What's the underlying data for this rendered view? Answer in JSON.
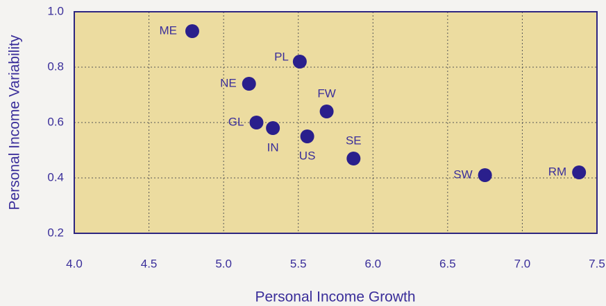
{
  "chart_data": {
    "type": "scatter",
    "x_label": "Personal Income Growth",
    "y_label": "Personal Income Variability",
    "labels": [
      "ME",
      "PL",
      "NE",
      "FW",
      "GL",
      "IN",
      "US",
      "SE",
      "SW",
      "RM"
    ],
    "x": [
      4.79,
      5.51,
      5.17,
      5.69,
      5.22,
      5.33,
      5.56,
      5.87,
      6.75,
      7.38
    ],
    "y": [
      0.93,
      0.82,
      0.74,
      0.64,
      0.6,
      0.58,
      0.55,
      0.47,
      0.41,
      0.42
    ],
    "color": "#2a1f8c",
    "xlim": [
      4.0,
      7.5
    ],
    "ylim": [
      0.2,
      1.0
    ],
    "xticks": [
      {
        "value": 4.0,
        "label": "4.0"
      },
      4.5,
      {
        "value": 5.0,
        "label": "5.0"
      },
      5.5,
      {
        "value": 6.0,
        "label": "6.0"
      },
      6.5,
      {
        "value": 7.0,
        "label": "7.0"
      },
      7.5
    ],
    "yticks": [
      0.2,
      0.4,
      0.6,
      0.8,
      {
        "value": 1.0,
        "label": "1.0"
      }
    ],
    "grid": true
  }
}
